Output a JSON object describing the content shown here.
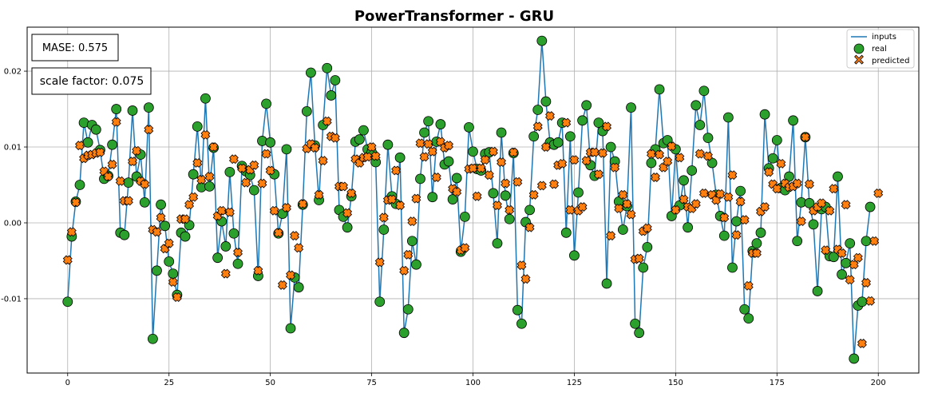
{
  "chart_data": {
    "type": "line",
    "title": "PowerTransformer - GRU",
    "xlabel": "",
    "ylabel": "",
    "xlim": [
      -10,
      210
    ],
    "ylim": [
      -0.0198,
      0.0258
    ],
    "x_ticks": [
      0,
      25,
      50,
      75,
      100,
      125,
      150,
      175,
      200
    ],
    "y_ticks": [
      -0.01,
      0.0,
      0.01,
      0.02
    ],
    "y_tick_labels": [
      "-0.01",
      "0.00",
      "0.01",
      "0.02"
    ],
    "grid": true,
    "legend_position": "top-right",
    "annotations": [
      {
        "label": "MASE",
        "value": "0.575"
      },
      {
        "label": "scale factor",
        "value": "0.075"
      }
    ],
    "series": [
      {
        "name": "inputs",
        "kind": "line",
        "color": "#1f77b4",
        "values": [
          -0.0104,
          -0.0018,
          0.0028,
          0.005,
          0.0132,
          0.0106,
          0.0129,
          0.0123,
          0.0096,
          0.0058,
          0.0062,
          0.0103,
          0.015,
          -0.0013,
          -0.0016,
          0.0053,
          0.0148,
          0.0061,
          0.009,
          0.0027,
          0.0152,
          -0.0153,
          -0.0063,
          0.0024,
          -0.0004,
          -0.0051,
          -0.0067,
          -0.0095,
          -0.0013,
          -0.0018,
          -0.0003,
          0.0064,
          0.0127,
          0.0047,
          0.0164,
          0.0048,
          0.0099,
          -0.0046,
          0.0002,
          -0.0031,
          0.0067,
          -0.0014,
          -0.0054,
          0.0075,
          0.0068,
          0.0063,
          0.0043,
          -0.007,
          0.0108,
          0.0157,
          0.0106,
          0.0064,
          -0.0014,
          0.0012,
          0.0097,
          -0.0139,
          -0.0072,
          -0.0085,
          0.0024,
          0.0147,
          0.0198,
          0.0102,
          0.003,
          0.0129,
          0.0204,
          0.0168,
          0.0188,
          0.0017,
          0.0008,
          -0.0006,
          0.0035,
          0.0107,
          0.011,
          0.0122,
          0.0097,
          0.0093,
          0.008,
          -0.0104,
          -0.0009,
          0.0103,
          0.0035,
          0.0025,
          0.0086,
          -0.0145,
          -0.0114,
          -0.0024,
          -0.0055,
          0.0058,
          0.0119,
          0.0134,
          0.0034,
          0.0107,
          0.013,
          0.0077,
          0.0081,
          0.0031,
          0.0059,
          -0.0038,
          0.0008,
          0.0126,
          0.0094,
          0.0071,
          0.0069,
          0.0091,
          0.0093,
          0.0039,
          -0.0027,
          0.0119,
          0.0036,
          0.0005,
          0.0092,
          -0.0115,
          -0.0133,
          0.0001,
          0.0017,
          0.0114,
          0.0149,
          0.024,
          0.016,
          0.0106,
          0.0103,
          0.0106,
          0.0132,
          -0.0013,
          0.0114,
          -0.0043,
          0.004,
          0.0135,
          0.0155,
          0.0076,
          0.0062,
          0.0132,
          0.0121,
          -0.008,
          0.01,
          0.0081,
          0.0028,
          -0.0009,
          0.0022,
          0.0152,
          -0.0133,
          -0.0145,
          -0.0059,
          -0.0032,
          0.0079,
          0.0097,
          0.0176,
          0.0105,
          0.0109,
          0.0009,
          0.0097,
          0.0023,
          0.0056,
          -0.0006,
          0.0069,
          0.0155,
          0.0129,
          0.0174,
          0.0112,
          0.0079,
          0.0037,
          0.0009,
          -0.0017,
          0.0139,
          -0.0059,
          0.0002,
          0.0042,
          -0.0114,
          -0.0126,
          -0.0037,
          -0.0027,
          -0.0013,
          0.0143,
          0.0072,
          0.0085,
          0.0109,
          0.0046,
          0.0043,
          0.0061,
          0.0135,
          -0.0024,
          0.0027,
          0.0113,
          0.0026,
          -0.0002,
          -0.009,
          0.0018,
          0.0021,
          -0.0044,
          -0.0045,
          0.0061,
          -0.0068,
          -0.0053,
          -0.0027,
          -0.0179,
          -0.0109,
          -0.0104,
          -0.0024,
          0.0021
        ]
      },
      {
        "name": "real",
        "kind": "scatter",
        "color": "#2ca02c",
        "marker": "circle",
        "values": [
          -0.0104,
          -0.0018,
          0.0028,
          0.005,
          0.0132,
          0.0106,
          0.0129,
          0.0123,
          0.0096,
          0.0058,
          0.0062,
          0.0103,
          0.015,
          -0.0013,
          -0.0016,
          0.0053,
          0.0148,
          0.0061,
          0.009,
          0.0027,
          0.0152,
          -0.0153,
          -0.0063,
          0.0024,
          -0.0004,
          -0.0051,
          -0.0067,
          -0.0095,
          -0.0013,
          -0.0018,
          -0.0003,
          0.0064,
          0.0127,
          0.0047,
          0.0164,
          0.0048,
          0.0099,
          -0.0046,
          0.0002,
          -0.0031,
          0.0067,
          -0.0014,
          -0.0054,
          0.0075,
          0.0068,
          0.0063,
          0.0043,
          -0.007,
          0.0108,
          0.0157,
          0.0106,
          0.0064,
          -0.0014,
          0.0012,
          0.0097,
          -0.0139,
          -0.0072,
          -0.0085,
          0.0024,
          0.0147,
          0.0198,
          0.0102,
          0.003,
          0.0129,
          0.0204,
          0.0168,
          0.0188,
          0.0017,
          0.0008,
          -0.0006,
          0.0035,
          0.0107,
          0.011,
          0.0122,
          0.0097,
          0.0093,
          0.008,
          -0.0104,
          -0.0009,
          0.0103,
          0.0035,
          0.0025,
          0.0086,
          -0.0145,
          -0.0114,
          -0.0024,
          -0.0055,
          0.0058,
          0.0119,
          0.0134,
          0.0034,
          0.0107,
          0.013,
          0.0077,
          0.0081,
          0.0031,
          0.0059,
          -0.0038,
          0.0008,
          0.0126,
          0.0094,
          0.0071,
          0.0069,
          0.0091,
          0.0093,
          0.0039,
          -0.0027,
          0.0119,
          0.0036,
          0.0005,
          0.0092,
          -0.0115,
          -0.0133,
          0.0001,
          0.0017,
          0.0114,
          0.0149,
          0.024,
          0.016,
          0.0106,
          0.0103,
          0.0106,
          0.0132,
          -0.0013,
          0.0114,
          -0.0043,
          0.004,
          0.0135,
          0.0155,
          0.0076,
          0.0062,
          0.0132,
          0.0121,
          -0.008,
          0.01,
          0.0081,
          0.0028,
          -0.0009,
          0.0022,
          0.0152,
          -0.0133,
          -0.0145,
          -0.0059,
          -0.0032,
          0.0079,
          0.0097,
          0.0176,
          0.0105,
          0.0109,
          0.0009,
          0.0097,
          0.0023,
          0.0056,
          -0.0006,
          0.0069,
          0.0155,
          0.0129,
          0.0174,
          0.0112,
          0.0079,
          0.0037,
          0.0009,
          -0.0017,
          0.0139,
          -0.0059,
          0.0002,
          0.0042,
          -0.0114,
          -0.0126,
          -0.0037,
          -0.0027,
          -0.0013,
          0.0143,
          0.0072,
          0.0085,
          0.0109,
          0.0046,
          0.0043,
          0.0061,
          0.0135,
          -0.0024,
          0.0027,
          0.0113,
          0.0026,
          -0.0002,
          -0.009,
          0.0018,
          0.0021,
          -0.0044,
          -0.0045,
          0.0061,
          -0.0068,
          -0.0053,
          -0.0027,
          -0.0179,
          -0.0109,
          -0.0104,
          -0.0024,
          0.0021
        ]
      },
      {
        "name": "predicted",
        "kind": "scatter",
        "color": "#ff7f0e",
        "marker": "x",
        "values": [
          -0.0049,
          -0.0012,
          0.0027,
          0.0102,
          0.0085,
          0.0089,
          0.009,
          0.0092,
          0.0093,
          0.0068,
          0.0061,
          0.0077,
          0.0133,
          0.0055,
          0.0029,
          0.0029,
          0.0081,
          0.0095,
          0.0055,
          0.0051,
          0.0123,
          -0.0009,
          -0.0012,
          0.0007,
          -0.0034,
          -0.0027,
          -0.0078,
          -0.0098,
          0.0005,
          0.0005,
          0.0024,
          0.0034,
          0.0079,
          0.0057,
          0.0116,
          0.0061,
          0.01,
          0.0009,
          0.0016,
          -0.0067,
          0.0014,
          0.0084,
          -0.0039,
          0.0072,
          0.0053,
          0.007,
          0.0076,
          -0.0063,
          0.0052,
          0.0091,
          0.0069,
          0.0016,
          -0.0013,
          -0.0082,
          0.002,
          -0.0069,
          -0.0017,
          -0.0033,
          0.0025,
          0.0098,
          0.0104,
          0.0099,
          0.0037,
          0.0082,
          0.0134,
          0.0114,
          0.0112,
          0.0048,
          0.0048,
          0.0013,
          0.0039,
          0.0084,
          0.0079,
          0.0086,
          0.0087,
          0.01,
          0.0088,
          -0.0052,
          0.0007,
          0.003,
          0.0031,
          0.0069,
          0.0023,
          -0.0063,
          -0.0042,
          0.0002,
          0.0032,
          0.0105,
          0.0087,
          0.0104,
          0.0094,
          0.006,
          0.0107,
          0.0099,
          0.0102,
          0.0045,
          0.0041,
          -0.0036,
          -0.0033,
          0.0071,
          0.0072,
          0.0035,
          0.0072,
          0.0083,
          0.0063,
          0.0094,
          0.0023,
          0.008,
          0.0052,
          0.0017,
          0.0093,
          0.0054,
          -0.0056,
          -0.0074,
          -0.0006,
          0.0037,
          0.0127,
          0.0049,
          0.01,
          0.0141,
          0.0051,
          0.0076,
          0.0078,
          0.0132,
          0.0017,
          0.0083,
          0.0016,
          0.0021,
          0.0082,
          0.0093,
          0.0093,
          0.0064,
          0.0092,
          0.0127,
          -0.0017,
          0.0073,
          0.0019,
          0.0037,
          0.0025,
          0.0011,
          -0.0048,
          -0.0047,
          -0.0011,
          -0.0007,
          0.0091,
          0.006,
          0.009,
          0.0073,
          0.0081,
          0.0101,
          0.0017,
          0.0086,
          0.0031,
          0.0021,
          0.0019,
          0.0025,
          0.0091,
          0.0039,
          0.0088,
          0.0037,
          0.003,
          0.0038,
          0.0007,
          0.0034,
          0.0063,
          -0.0016,
          0.0028,
          0.0004,
          -0.0083,
          -0.004,
          -0.004,
          0.0015,
          0.0021,
          0.0067,
          0.0051,
          0.0045,
          0.0078,
          0.0052,
          0.0047,
          0.0048,
          0.0052,
          0.0002,
          0.0113,
          0.0051,
          0.0016,
          0.0021,
          0.0026,
          -0.0036,
          0.0016,
          0.0045,
          -0.0035,
          -0.004,
          0.0024,
          -0.0075,
          -0.0055,
          -0.0046,
          -0.0159,
          -0.0079,
          -0.0103,
          -0.0024,
          0.0039
        ]
      }
    ]
  }
}
